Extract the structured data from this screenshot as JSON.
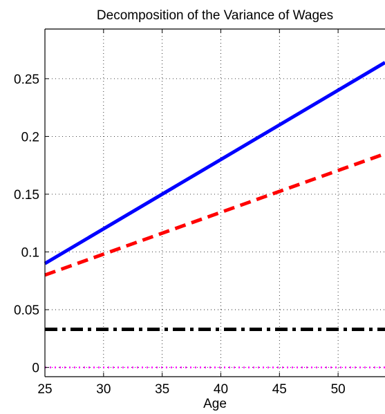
{
  "chart_data": {
    "type": "line",
    "title": "Decomposition of the Variance of Wages",
    "xlabel": "Age",
    "ylabel": "",
    "xlim": [
      25,
      54
    ],
    "ylim": [
      -0.008,
      0.293
    ],
    "xticks": [
      25,
      30,
      35,
      40,
      45,
      50
    ],
    "xtick_labels": [
      "25",
      "30",
      "35",
      "40",
      "45",
      "50"
    ],
    "yticks": [
      0,
      0.05,
      0.1,
      0.15,
      0.2,
      0.25
    ],
    "ytick_labels": [
      "0",
      "0.05",
      "0.1",
      "0.15",
      "0.2",
      "0.25"
    ],
    "grid": true,
    "legend": false,
    "series": [
      {
        "color": "#0000ff",
        "style": "solid",
        "x": [
          25,
          54
        ],
        "y": [
          0.09,
          0.264
        ]
      },
      {
        "color": "#ff0000",
        "style": "dashed",
        "x": [
          25,
          54
        ],
        "y": [
          0.08,
          0.185
        ]
      },
      {
        "color": "#000000",
        "style": "dashdot",
        "x": [
          25,
          54
        ],
        "y": [
          0.033,
          0.033
        ]
      },
      {
        "color": "#ff00ff",
        "style": "dotted",
        "x": [
          25,
          54
        ],
        "y": [
          0.0,
          0.0
        ]
      }
    ]
  }
}
